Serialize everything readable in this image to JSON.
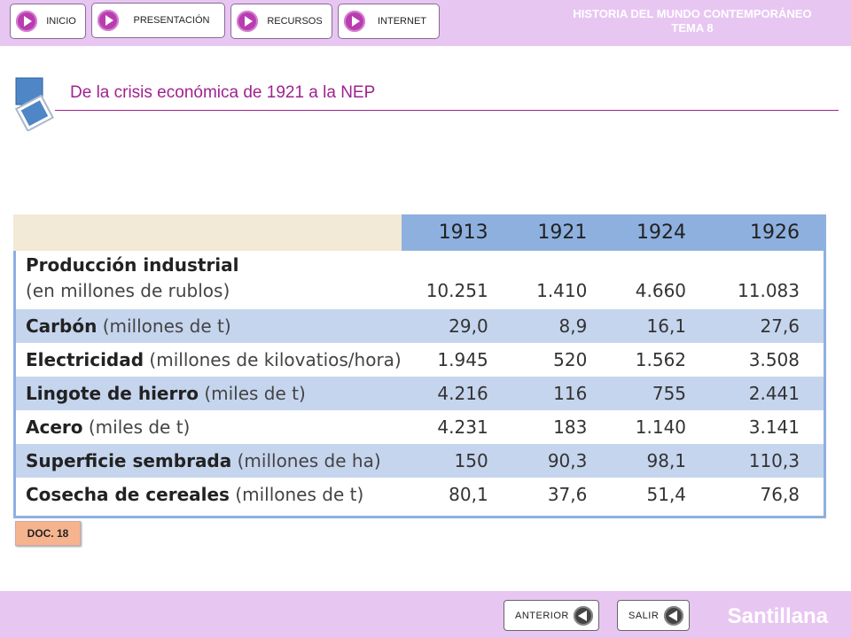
{
  "header": {
    "nav": [
      {
        "label": "INICIO"
      },
      {
        "label": "PRESENTACIÓN"
      },
      {
        "label": "RECURSOS"
      },
      {
        "label": "INTERNET"
      }
    ],
    "title_line1": "HISTORIA DEL MUNDO CONTEMPORÁNEO",
    "title_line2": "TEMA 8"
  },
  "section": {
    "title": "De la crisis económica de 1921 a la NEP"
  },
  "table": {
    "years": [
      "1913",
      "1921",
      "1924",
      "1926"
    ],
    "rows": [
      {
        "name": "Producción industrial",
        "unit": "(en millones de rublos)",
        "values": [
          "10.251",
          "1.410",
          "4.660",
          "11.083"
        ]
      },
      {
        "name": "Carbón",
        "unit": "(millones de t)",
        "values": [
          "29,0",
          "8,9",
          "16,1",
          "27,6"
        ]
      },
      {
        "name": "Electricidad",
        "unit": "(millones de kilovatios/hora)",
        "values": [
          "1.945",
          "520",
          "1.562",
          "3.508"
        ]
      },
      {
        "name": "Lingote de hierro",
        "unit": "(miles de t)",
        "values": [
          "4.216",
          "116",
          "755",
          "2.441"
        ]
      },
      {
        "name": "Acero",
        "unit": "(miles de t)",
        "values": [
          "4.231",
          "183",
          "1.140",
          "3.141"
        ]
      },
      {
        "name": "Superficie sembrada",
        "unit": "(millones de ha)",
        "values": [
          "150",
          "90,3",
          "98,1",
          "110,3"
        ]
      },
      {
        "name": "Cosecha de cereales",
        "unit": "(millones de t)",
        "values": [
          "80,1",
          "37,6",
          "51,4",
          "76,8"
        ]
      }
    ]
  },
  "doc_badge": "DOC. 18",
  "footer": {
    "prev_label": "ANTERIOR",
    "exit_label": "SALIR",
    "brand": "Santillana"
  },
  "colors": {
    "bar": "#e8c6f2",
    "accent": "#a0228f",
    "header_blue": "#8eb0df",
    "row_shade": "#c6d5ee"
  }
}
